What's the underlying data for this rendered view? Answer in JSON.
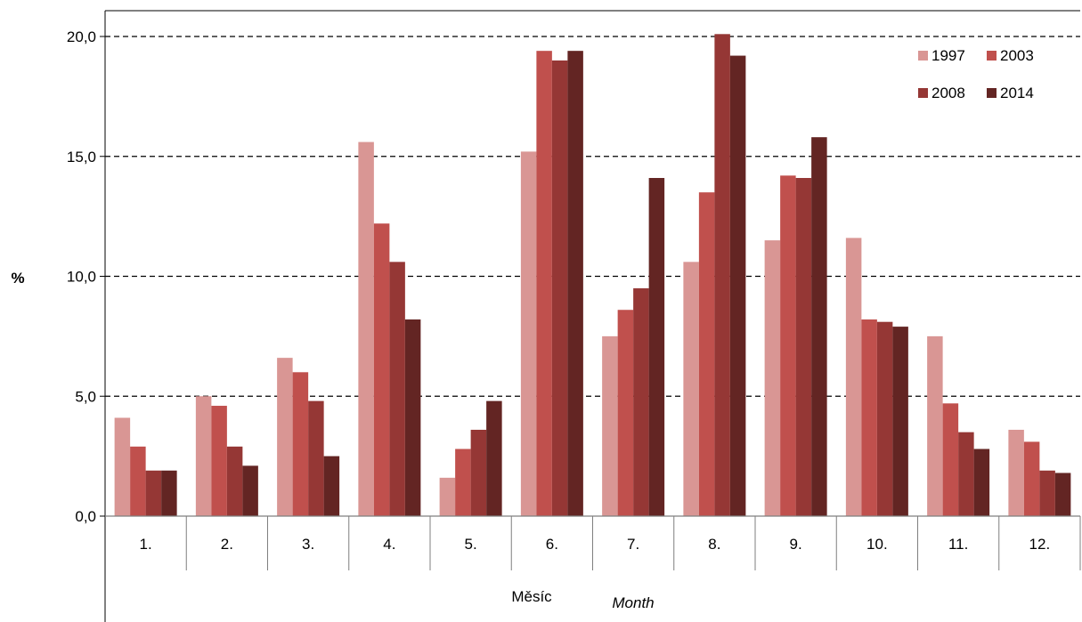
{
  "chart_data": {
    "type": "bar",
    "ylabel": "%",
    "xlabel": "Měsíc",
    "xlabel_en": "Month",
    "ylim": [
      0,
      20
    ],
    "yticks": [
      "0,0",
      "5,0",
      "10,0",
      "15,0",
      "20,0"
    ],
    "ytick_values": [
      0,
      5,
      10,
      15,
      20
    ],
    "grid": "horizontal dashed",
    "legend_position": "top-right",
    "categories": [
      "1.",
      "2.",
      "3.",
      "4.",
      "5.",
      "6.",
      "7.",
      "8.",
      "9.",
      "10.",
      "11.",
      "12."
    ],
    "series": [
      {
        "name": "1997",
        "color": "#d99694",
        "values": [
          4.1,
          5.0,
          6.6,
          15.6,
          1.6,
          15.2,
          7.5,
          10.6,
          11.5,
          11.6,
          7.5,
          3.6
        ]
      },
      {
        "name": "2003",
        "color": "#c0504d",
        "values": [
          2.9,
          4.6,
          6.0,
          12.2,
          2.8,
          19.4,
          8.6,
          13.5,
          14.2,
          8.2,
          4.7,
          3.1
        ]
      },
      {
        "name": "2008",
        "color": "#953735",
        "values": [
          1.9,
          2.9,
          4.8,
          10.6,
          3.6,
          19.0,
          9.5,
          20.1,
          14.1,
          8.1,
          3.5,
          1.9
        ]
      },
      {
        "name": "2014",
        "color": "#632523",
        "values": [
          1.9,
          2.1,
          2.5,
          8.2,
          4.8,
          19.4,
          14.1,
          19.2,
          15.8,
          7.9,
          2.8,
          1.8
        ]
      }
    ]
  }
}
